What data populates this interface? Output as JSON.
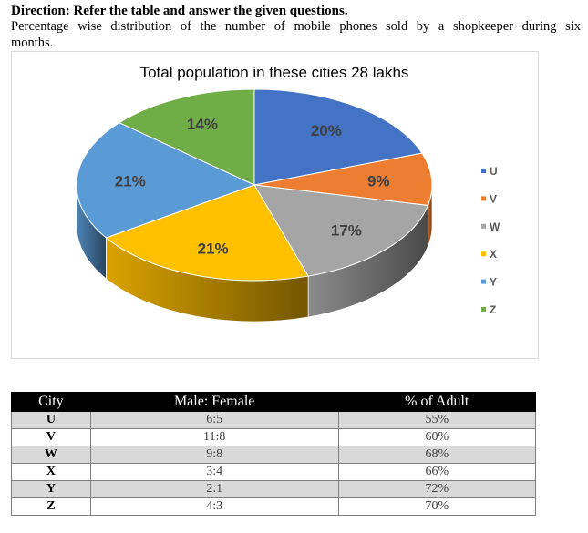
{
  "header": {
    "direction": "Direction: Refer the table and answer the given questions.",
    "description_line1": "Percentage wise distribution of the number of mobile phones sold by a shopkeeper during six",
    "description_line2": "months."
  },
  "chart_data": {
    "type": "pie",
    "title": "Total population in these cities 28 lakhs",
    "categories": [
      "U",
      "V",
      "W",
      "X",
      "Y",
      "Z"
    ],
    "values": [
      20,
      9,
      17,
      21,
      21,
      14
    ],
    "value_labels": [
      "20%",
      "9%",
      "17%",
      "21%",
      "21%",
      "14%"
    ],
    "colors": [
      "#4472c4",
      "#ed7d31",
      "#a5a5a5",
      "#ffc000",
      "#5b9bd5",
      "#70ad47"
    ],
    "legend_position": "right",
    "style": "3d"
  },
  "table": {
    "headers": [
      "City",
      "Male: Female",
      "% of Adult"
    ],
    "rows": [
      [
        "U",
        "6:5",
        "55%"
      ],
      [
        "V",
        "11:8",
        "60%"
      ],
      [
        "W",
        "9:8",
        "68%"
      ],
      [
        "X",
        "3:4",
        "66%"
      ],
      [
        "Y",
        "2:1",
        "72%"
      ],
      [
        "Z",
        "4:3",
        "70%"
      ]
    ]
  }
}
